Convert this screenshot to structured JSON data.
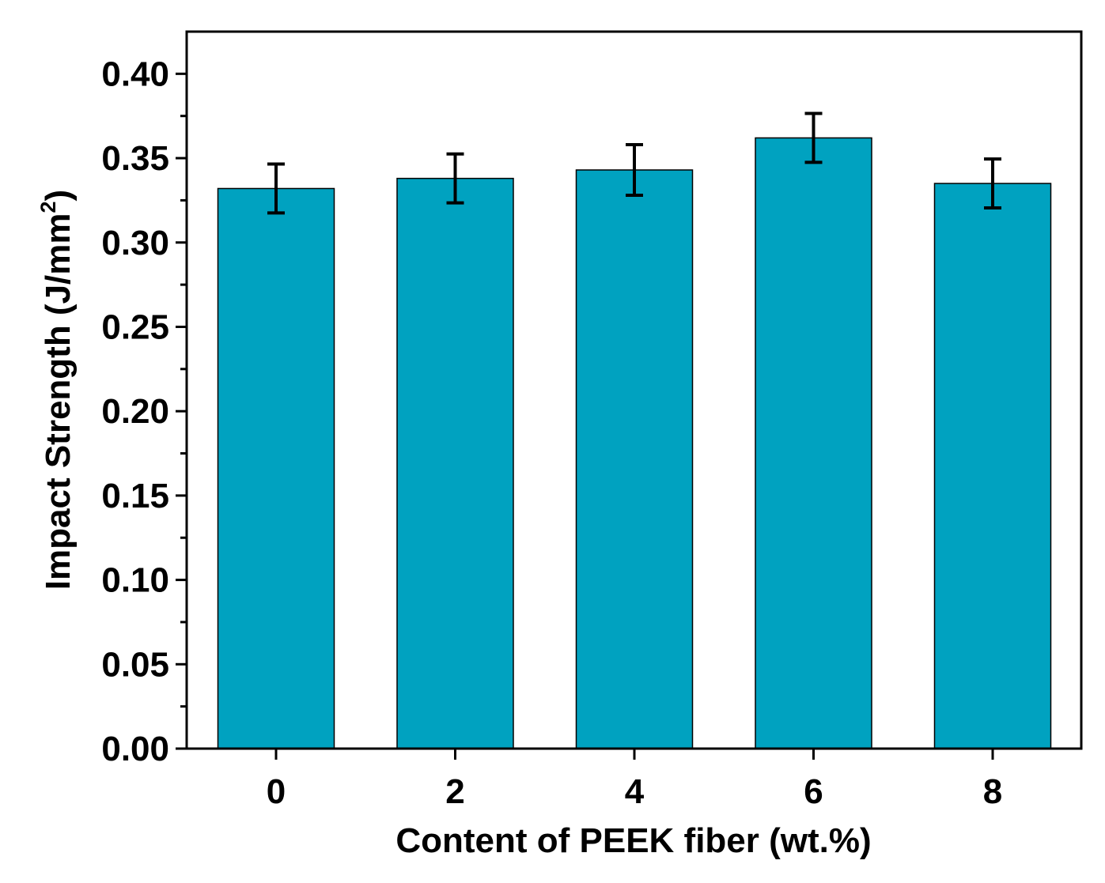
{
  "chart_data": {
    "type": "bar",
    "categories": [
      "0",
      "2",
      "4",
      "6",
      "8"
    ],
    "values": [
      0.332,
      0.338,
      0.343,
      0.362,
      0.335
    ],
    "errors": [
      0.0145,
      0.0145,
      0.015,
      0.0145,
      0.0145
    ],
    "title": "",
    "xlabel": "Content of PEEK fiber (wt.%)",
    "ylabel": {
      "main": "Impact Strength (J/mm",
      "superscript": "2",
      "close": ")"
    },
    "ylim": [
      0,
      0.425
    ],
    "yticks": [
      "0.00",
      "0.05",
      "0.10",
      "0.15",
      "0.20",
      "0.25",
      "0.30",
      "0.35",
      "0.40"
    ],
    "ytick_values": [
      0,
      0.05,
      0.1,
      0.15,
      0.2,
      0.25,
      0.3,
      0.35,
      0.4
    ],
    "bar_color": "#00A2C0",
    "grid": false,
    "legend": "none"
  }
}
